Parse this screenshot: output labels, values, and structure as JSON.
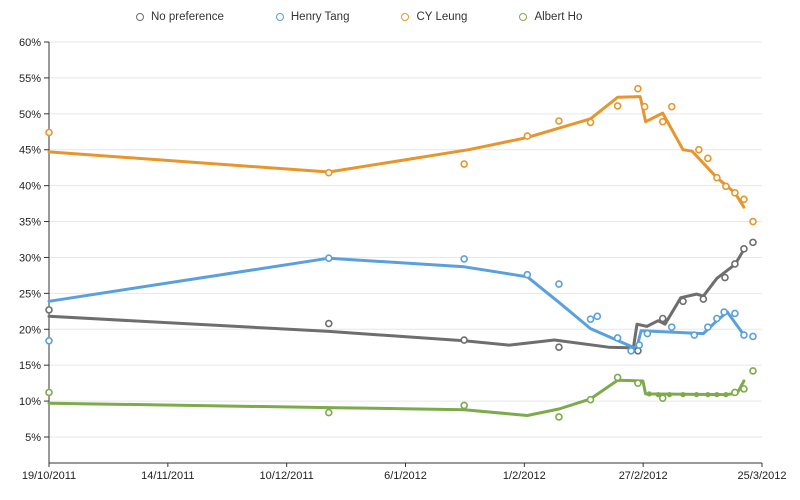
{
  "title": "",
  "legend": [
    {
      "label": "No preference",
      "color": "#6E6E6E"
    },
    {
      "label": "Henry Tang",
      "color": "#5AA0DC"
    },
    {
      "label": "CY Leung",
      "color": "#E6962D"
    },
    {
      "label": "Albert Ho",
      "color": "#7DAA4B"
    }
  ],
  "colors": {
    "grid": "#E7E7E7",
    "axis": "#333333",
    "tick_label": "#222222"
  },
  "chart_data": {
    "type": "line",
    "title": "",
    "xlabel": "",
    "ylabel": "",
    "x_unit": "days since 19/10/2011",
    "xlim": [
      0,
      158
    ],
    "ylim": [
      1.4,
      60
    ],
    "grid": "horizontal",
    "legend_position": "top",
    "y_ticks": [
      5,
      10,
      15,
      20,
      25,
      30,
      35,
      40,
      45,
      50,
      55,
      60
    ],
    "y_tick_labels": [
      "5%",
      "10%",
      "15%",
      "20%",
      "25%",
      "30%",
      "35%",
      "40%",
      "45%",
      "50%",
      "55%",
      "60%"
    ],
    "x_tick_labels": [
      "19/10/2011",
      "14/11/2011",
      "10/12/2011",
      "6/1/2012",
      "1/2/2012",
      "27/2/2012",
      "25/3/2012"
    ],
    "series": [
      {
        "name": "No preference",
        "color": "#6E6E6E",
        "trend": [
          [
            0,
            21.8
          ],
          [
            62,
            19.7
          ],
          [
            92,
            18.4
          ],
          [
            102,
            17.8
          ],
          [
            112,
            18.5
          ],
          [
            124,
            17.5
          ],
          [
            129.5,
            17.4
          ],
          [
            130.3,
            20.7
          ],
          [
            132.5,
            20.4
          ],
          [
            135,
            21.2
          ],
          [
            136.5,
            20.7
          ],
          [
            140,
            24.4
          ],
          [
            143.5,
            24.9
          ],
          [
            145,
            24.6
          ],
          [
            148,
            27.1
          ],
          [
            152,
            29.0
          ],
          [
            154,
            31.1
          ]
        ],
        "points": [
          [
            0,
            22.7
          ],
          [
            62,
            20.8
          ],
          [
            92,
            18.5
          ],
          [
            113,
            17.5
          ],
          [
            130.5,
            17.0
          ],
          [
            136,
            21.5
          ],
          [
            140.5,
            23.9
          ],
          [
            145,
            24.2
          ],
          [
            149.8,
            27.2
          ],
          [
            152,
            29.1
          ],
          [
            154,
            31.2
          ],
          [
            156,
            32.1
          ]
        ]
      },
      {
        "name": "Henry Tang",
        "color": "#5AA0DC",
        "trend": [
          [
            0,
            23.9
          ],
          [
            62,
            29.9
          ],
          [
            92,
            28.7
          ],
          [
            106,
            27.3
          ],
          [
            113.3,
            23.6
          ],
          [
            120,
            20.1
          ],
          [
            130.2,
            17.3
          ],
          [
            131.2,
            19.8
          ],
          [
            138,
            19.6
          ],
          [
            145,
            19.4
          ],
          [
            148,
            21.2
          ],
          [
            150.3,
            22.4
          ],
          [
            154,
            19.2
          ]
        ],
        "points": [
          [
            0,
            18.4
          ],
          [
            62,
            29.9
          ],
          [
            92,
            29.8
          ],
          [
            106,
            27.6
          ],
          [
            113,
            26.3
          ],
          [
            120,
            21.4
          ],
          [
            121.5,
            21.8
          ],
          [
            126,
            18.8
          ],
          [
            129,
            17.0
          ],
          [
            130.8,
            17.8
          ],
          [
            132.6,
            19.4
          ],
          [
            138,
            20.3
          ],
          [
            143,
            19.2
          ],
          [
            146,
            20.3
          ],
          [
            148,
            21.5
          ],
          [
            149.6,
            22.4
          ],
          [
            152,
            22.2
          ],
          [
            154,
            19.2
          ],
          [
            156,
            19.0
          ]
        ]
      },
      {
        "name": "CY Leung",
        "color": "#E6962D",
        "trend": [
          [
            0,
            44.7
          ],
          [
            62,
            41.9
          ],
          [
            93,
            45.0
          ],
          [
            106,
            46.7
          ],
          [
            120,
            49.3
          ],
          [
            126,
            52.3
          ],
          [
            131,
            52.4
          ],
          [
            132.2,
            48.9
          ],
          [
            136,
            50.1
          ],
          [
            140.5,
            45.0
          ],
          [
            142.5,
            44.8
          ],
          [
            148,
            41.1
          ],
          [
            152,
            39.0
          ],
          [
            154,
            37.0
          ]
        ],
        "points": [
          [
            0,
            47.4
          ],
          [
            62,
            41.8
          ],
          [
            92,
            43.0
          ],
          [
            106,
            46.9
          ],
          [
            113,
            49.0
          ],
          [
            120,
            48.8
          ],
          [
            126,
            51.1
          ],
          [
            130.5,
            53.5
          ],
          [
            132,
            51.0
          ],
          [
            136,
            48.9
          ],
          [
            138,
            51.0
          ],
          [
            144,
            45.0
          ],
          [
            146,
            43.8
          ],
          [
            148,
            41.1
          ],
          [
            150,
            39.9
          ],
          [
            152,
            39.0
          ],
          [
            154,
            38.1
          ],
          [
            156,
            35.0
          ]
        ]
      },
      {
        "name": "Albert Ho",
        "color": "#7DAA4B",
        "trend": [
          [
            0,
            9.7
          ],
          [
            62,
            9.1
          ],
          [
            92,
            8.8
          ],
          [
            106,
            8.0
          ],
          [
            113,
            8.9
          ],
          [
            120,
            10.3
          ],
          [
            126,
            12.9
          ],
          [
            131.6,
            12.8
          ],
          [
            132.2,
            11.0
          ],
          [
            150,
            10.9
          ],
          [
            152.5,
            11.1
          ],
          [
            154,
            12.8
          ]
        ],
        "trend_dots": [
          [
            133,
            11.0
          ],
          [
            135,
            10.9
          ],
          [
            137.5,
            10.9
          ],
          [
            140.5,
            10.9
          ],
          [
            143.5,
            10.9
          ],
          [
            146,
            10.9
          ],
          [
            148,
            10.9
          ],
          [
            150,
            10.9
          ]
        ],
        "points": [
          [
            0,
            11.2
          ],
          [
            62,
            8.4
          ],
          [
            92,
            9.4
          ],
          [
            113,
            7.8
          ],
          [
            120,
            10.2
          ],
          [
            126,
            13.3
          ],
          [
            130.5,
            12.5
          ],
          [
            136,
            10.4
          ],
          [
            152,
            11.2
          ],
          [
            154,
            11.7
          ],
          [
            156,
            14.2
          ]
        ]
      }
    ]
  }
}
